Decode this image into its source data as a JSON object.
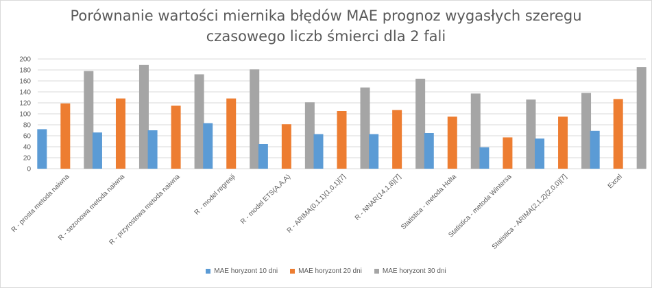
{
  "chart_data": {
    "type": "bar",
    "title_line1": "Porównanie wartości miernika błędów MAE prognoz wygasłych szeregu",
    "title_line2": "czasowego liczb śmierci dla 2 fali",
    "categories": [
      "R - prosta metoda naiwna",
      "R - sezonowa metoda naiwna",
      "R - przyrostowa metoda naiwna",
      "R - model regresji",
      "R - model ETS(A,A,A)",
      "R - ARIMA(0,1,1)(1,0,1)[7]",
      "R - NNAR(14,1,8)[7]",
      "Statistica - metoda Holta",
      "Statistica - metoda Wintersa",
      "Statistica - ARIMA(2,1,2)(2,0,0)[7]",
      "Excel"
    ],
    "series": [
      {
        "name": "MAE horyzont 10 dni",
        "color": "#5b9bd5",
        "values": [
          72,
          66,
          70,
          83,
          45,
          63,
          63,
          65,
          39,
          55,
          69
        ]
      },
      {
        "name": "MAE horyzont 20 dni",
        "color": "#ed7d31",
        "values": [
          119,
          128,
          115,
          128,
          81,
          105,
          107,
          95,
          57,
          95,
          127
        ]
      },
      {
        "name": "MAE horyzont 30 dni",
        "color": "#a5a5a5",
        "values": [
          178,
          189,
          172,
          181,
          121,
          148,
          164,
          137,
          126,
          138,
          185
        ]
      }
    ],
    "yticks": [
      "0",
      "20",
      "40",
      "60",
      "80",
      "100",
      "120",
      "140",
      "160",
      "180",
      "200"
    ],
    "ylim": [
      0,
      200
    ],
    "grid": true,
    "legend_position": "bottom"
  }
}
